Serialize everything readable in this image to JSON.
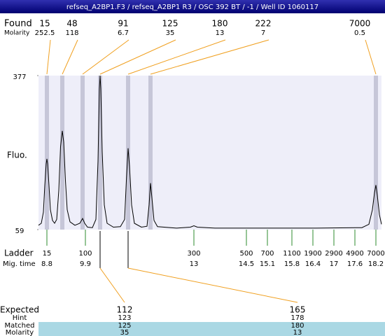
{
  "chart_data": {
    "type": "line",
    "title": "refseq_A2BP1.F3 / refseq_A2BP1 R3 / OSC 392 BT / -1 / Well ID 1060117",
    "y_label": "Fluo.",
    "xlim": [
      8.56,
      18.36
    ],
    "ylim": [
      59,
      377
    ],
    "yticks": [
      377,
      59
    ],
    "color": "#000000",
    "x": [
      8.56,
      8.64,
      8.7,
      8.74,
      8.78,
      8.8,
      8.82,
      8.86,
      8.9,
      8.96,
      9.02,
      9.08,
      9.14,
      9.19,
      9.24,
      9.28,
      9.33,
      9.38,
      9.46,
      9.6,
      9.74,
      9.82,
      9.88,
      9.96,
      10.1,
      10.2,
      10.26,
      10.3,
      10.32,
      10.34,
      10.38,
      10.44,
      10.52,
      10.7,
      10.9,
      11.02,
      11.07,
      11.12,
      11.16,
      11.22,
      11.3,
      11.5,
      11.66,
      11.72,
      11.76,
      11.8,
      11.86,
      11.96,
      12.5,
      12.9,
      13,
      13.1,
      13.6,
      15,
      16.5,
      17.8,
      18,
      18.1,
      18.16,
      18.2,
      18.24,
      18.3,
      18.36
    ],
    "values": [
      68,
      72,
      95,
      150,
      195,
      205,
      195,
      150,
      100,
      78,
      72,
      80,
      140,
      230,
      263,
      240,
      160,
      100,
      75,
      68,
      72,
      82,
      72,
      64,
      63,
      80,
      200,
      350,
      377,
      350,
      220,
      110,
      72,
      64,
      65,
      80,
      160,
      227,
      190,
      110,
      72,
      64,
      66,
      110,
      155,
      125,
      78,
      65,
      62,
      64,
      67,
      64,
      62,
      62,
      62,
      63,
      70,
      100,
      135,
      151,
      130,
      90,
      70
    ],
    "found": {
      "label": "Found",
      "molarity_label": "Molarity",
      "sizes": [
        15,
        48,
        91,
        125,
        180,
        222,
        7000
      ],
      "molarity": [
        252.5,
        118,
        6.7,
        35,
        13,
        7,
        0.5
      ],
      "times": [
        8.8,
        9.24,
        9.82,
        10.32,
        11.12,
        11.76,
        18.2
      ]
    },
    "ladder": {
      "label": "Ladder",
      "time_label": "Mig. time",
      "sizes": [
        15,
        100,
        300,
        500,
        700,
        1100,
        1900,
        2900,
        4900,
        7000
      ],
      "times": [
        8.8,
        9.9,
        13,
        14.5,
        15.1,
        15.8,
        16.4,
        17,
        17.6,
        18.2
      ]
    },
    "expected": {
      "label": "Expected",
      "hint_label": "Hint",
      "matched_label": "Matched",
      "molarity_label": "Molarity",
      "sizes": [
        112,
        165
      ],
      "hint": [
        123,
        178
      ],
      "matched": [
        125,
        180
      ],
      "molarity": [
        35,
        13
      ]
    }
  }
}
